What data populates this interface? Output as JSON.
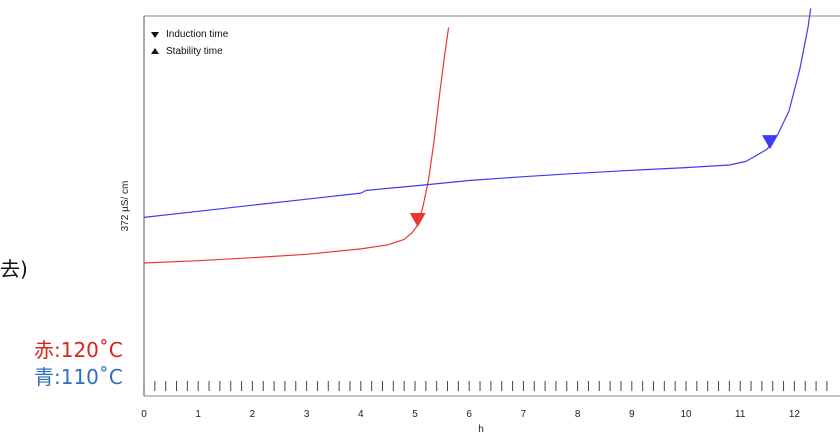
{
  "chart_data": {
    "type": "line",
    "title": "",
    "xlabel": "h",
    "ylabel": "372 µS/ cm",
    "xlim": [
      0,
      12.6
    ],
    "ylim": [
      0,
      100
    ],
    "x_ticks": [
      0,
      1,
      2,
      3,
      4,
      5,
      6,
      7,
      8,
      9,
      10,
      11,
      12
    ],
    "legend": {
      "placement": "top-left",
      "entries": [
        {
          "marker": "down-triangle",
          "label": "Induction time"
        },
        {
          "marker": "up-triangle",
          "label": "Stability time"
        }
      ]
    },
    "series": [
      {
        "color": "#e8392f",
        "points": [
          [
            0,
            35
          ],
          [
            1,
            35.6
          ],
          [
            2,
            36.4
          ],
          [
            3,
            37.3
          ],
          [
            4,
            38.7
          ],
          [
            4.5,
            39.8
          ],
          [
            4.8,
            41.2
          ],
          [
            4.95,
            43
          ],
          [
            5.05,
            45
          ],
          [
            5.15,
            50
          ],
          [
            5.25,
            57
          ],
          [
            5.35,
            67
          ],
          [
            5.45,
            79
          ],
          [
            5.55,
            90
          ],
          [
            5.62,
            97
          ]
        ],
        "markers": [
          {
            "type": "induction",
            "x": 5.05,
            "y": 45
          }
        ]
      },
      {
        "color": "#3c3cf0",
        "points": [
          [
            0,
            47
          ],
          [
            1,
            48.6
          ],
          [
            2,
            50.2
          ],
          [
            3,
            51.8
          ],
          [
            4,
            53.4
          ],
          [
            4.1,
            54.1
          ],
          [
            5,
            55.3
          ],
          [
            6,
            56.7
          ],
          [
            7,
            57.7
          ],
          [
            8,
            58.6
          ],
          [
            9,
            59.4
          ],
          [
            10,
            60.1
          ],
          [
            10.8,
            60.8
          ],
          [
            11.1,
            61.7
          ],
          [
            11.3,
            63.3
          ],
          [
            11.5,
            65
          ],
          [
            11.7,
            69
          ],
          [
            11.9,
            75
          ],
          [
            12.1,
            86
          ],
          [
            12.25,
            97
          ],
          [
            12.3,
            102
          ]
        ],
        "markers": [
          {
            "type": "induction",
            "x": 11.55,
            "y": 65.5
          }
        ]
      }
    ]
  },
  "side_text": {
    "crop": "去)",
    "red_key": "赤:120˚C",
    "blue_key": "青:110˚C"
  },
  "colors": {
    "red_key": "#d9231d",
    "blue_key": "#2f6fc0"
  }
}
